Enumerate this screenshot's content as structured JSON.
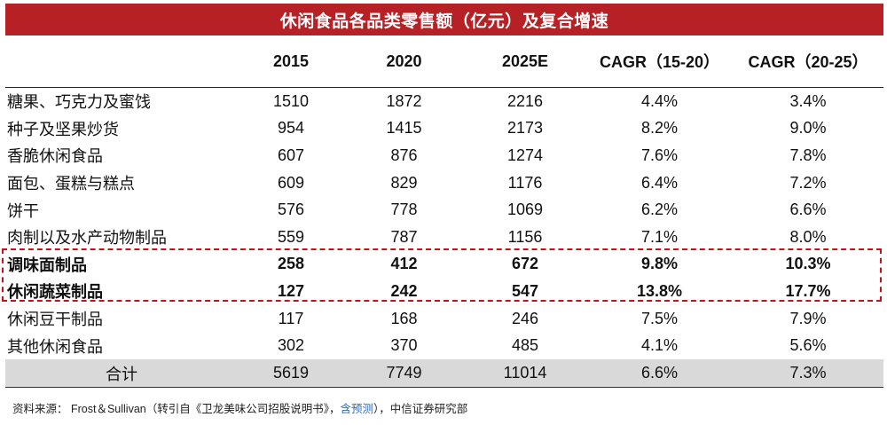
{
  "title": "休闲食品各品类零售额（亿元）及复合增速",
  "headers": [
    "",
    "2015",
    "2020",
    "2025E",
    "CAGR（15-20）",
    "CAGR（20-25）"
  ],
  "rows": [
    {
      "name": "糖果、巧克力及蜜饯",
      "v2015": "1510",
      "v2020": "1872",
      "v2025": "2216",
      "cagr1": "4.4%",
      "cagr2": "3.4%"
    },
    {
      "name": "种子及坚果炒货",
      "v2015": "954",
      "v2020": "1415",
      "v2025": "2173",
      "cagr1": "8.2%",
      "cagr2": "9.0%"
    },
    {
      "name": "香脆休闲食品",
      "v2015": "607",
      "v2020": "876",
      "v2025": "1274",
      "cagr1": "7.6%",
      "cagr2": "7.8%"
    },
    {
      "name": "面包、蛋糕与糕点",
      "v2015": "609",
      "v2020": "829",
      "v2025": "1176",
      "cagr1": "6.4%",
      "cagr2": "7.2%"
    },
    {
      "name": "饼干",
      "v2015": "576",
      "v2020": "778",
      "v2025": "1069",
      "cagr1": "6.2%",
      "cagr2": "6.6%"
    },
    {
      "name": "肉制以及水产动物制品",
      "v2015": "559",
      "v2020": "787",
      "v2025": "1156",
      "cagr1": "7.1%",
      "cagr2": "8.0%"
    },
    {
      "name": "调味面制品",
      "v2015": "258",
      "v2020": "412",
      "v2025": "672",
      "cagr1": "9.8%",
      "cagr2": "10.3%"
    },
    {
      "name": "休闲蔬菜制品",
      "v2015": "127",
      "v2020": "242",
      "v2025": "547",
      "cagr1": "13.8%",
      "cagr2": "17.7%"
    },
    {
      "name": "休闲豆干制品",
      "v2015": "117",
      "v2020": "168",
      "v2025": "246",
      "cagr1": "7.5%",
      "cagr2": "7.9%"
    },
    {
      "name": "其他休闲食品",
      "v2015": "302",
      "v2020": "370",
      "v2025": "485",
      "cagr1": "4.1%",
      "cagr2": "5.6%"
    }
  ],
  "total": {
    "name": "合计",
    "v2015": "5619",
    "v2020": "7749",
    "v2025": "11014",
    "cagr1": "6.6%",
    "cagr2": "7.3%"
  },
  "source": {
    "prefix": "资料来源：  Frost＆Sullivan（转引自《卫龙美味公司招股说明书》，",
    "forecast": "含预测",
    "suffix": "），中信证券研究部"
  },
  "colors": {
    "title_bg": "#b72126",
    "highlight": "#c0141c",
    "total_bg": "#d9d9d9",
    "forecast_text": "#2e6fb8"
  }
}
